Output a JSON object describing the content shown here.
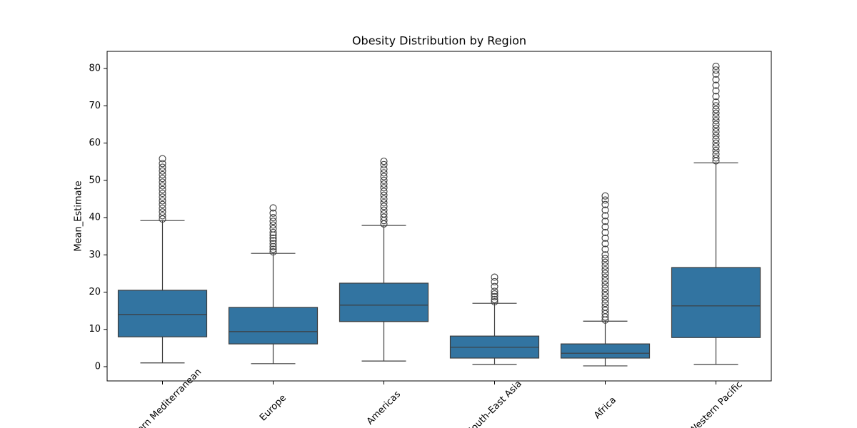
{
  "chart_data": {
    "type": "box",
    "title": "Obesity Distribution by Region",
    "ylabel": "Mean_Estimate",
    "categories": [
      "Eastern Mediterranean",
      "Europe",
      "Americas",
      "South-East Asia",
      "Africa",
      "Western Pacific"
    ],
    "color": "#3274a1",
    "stats": [
      {
        "whislo": 1.0,
        "q1": 8.0,
        "med": 14.0,
        "q3": 20.5,
        "whishi": 39.2,
        "fliers": [
          39.6,
          40.5,
          41.5,
          42.5,
          43.5,
          44.5,
          45.5,
          46.5,
          47.5,
          48.5,
          49.5,
          50.5,
          51.5,
          52.5,
          53.5,
          54.5,
          55.8
        ]
      },
      {
        "whislo": 0.8,
        "q1": 6.1,
        "med": 9.4,
        "q3": 15.9,
        "whishi": 30.4,
        "fliers": [
          30.8,
          31.5,
          32.2,
          33.0,
          33.8,
          34.5,
          35.3,
          36.0,
          37.0,
          38.0,
          39.0,
          40.0,
          41.2,
          42.6
        ]
      },
      {
        "whislo": 1.5,
        "q1": 12.1,
        "med": 16.5,
        "q3": 22.4,
        "whishi": 37.9,
        "fliers": [
          38.3,
          39.2,
          40.1,
          41.0,
          42.0,
          43.0,
          44.0,
          45.0,
          46.0,
          47.0,
          48.0,
          49.0,
          50.0,
          51.0,
          52.0,
          53.0,
          54.2,
          55.1
        ]
      },
      {
        "whislo": 0.6,
        "q1": 2.3,
        "med": 5.2,
        "q3": 8.2,
        "whishi": 17.0,
        "fliers": [
          17.4,
          18.0,
          18.8,
          19.5,
          20.2,
          21.5,
          22.8,
          24.0
        ]
      },
      {
        "whislo": 0.2,
        "q1": 2.3,
        "med": 3.6,
        "q3": 6.1,
        "whishi": 12.2,
        "fliers": [
          12.5,
          13.3,
          14.2,
          15.1,
          16.0,
          17.0,
          18.0,
          19.0,
          20.0,
          21.0,
          22.0,
          23.0,
          24.0,
          25.0,
          26.0,
          27.0,
          28.0,
          29.0,
          30.0,
          31.5,
          33.0,
          34.5,
          36.0,
          37.5,
          39.0,
          40.5,
          42.0,
          43.5,
          44.7,
          45.8
        ]
      },
      {
        "whislo": 0.6,
        "q1": 7.8,
        "med": 16.3,
        "q3": 26.6,
        "whishi": 54.7,
        "fliers": [
          55.2,
          56.0,
          57.0,
          58.0,
          59.0,
          60.0,
          61.0,
          62.0,
          63.0,
          64.0,
          65.0,
          66.0,
          67.0,
          68.0,
          69.0,
          70.0,
          71.0,
          72.5,
          74.0,
          75.5,
          77.0,
          78.5,
          79.6,
          80.6
        ]
      }
    ],
    "ylim": [
      -3.83,
      84.6
    ],
    "yticks": [
      0,
      10,
      20,
      30,
      40,
      50,
      60,
      70,
      80
    ]
  }
}
